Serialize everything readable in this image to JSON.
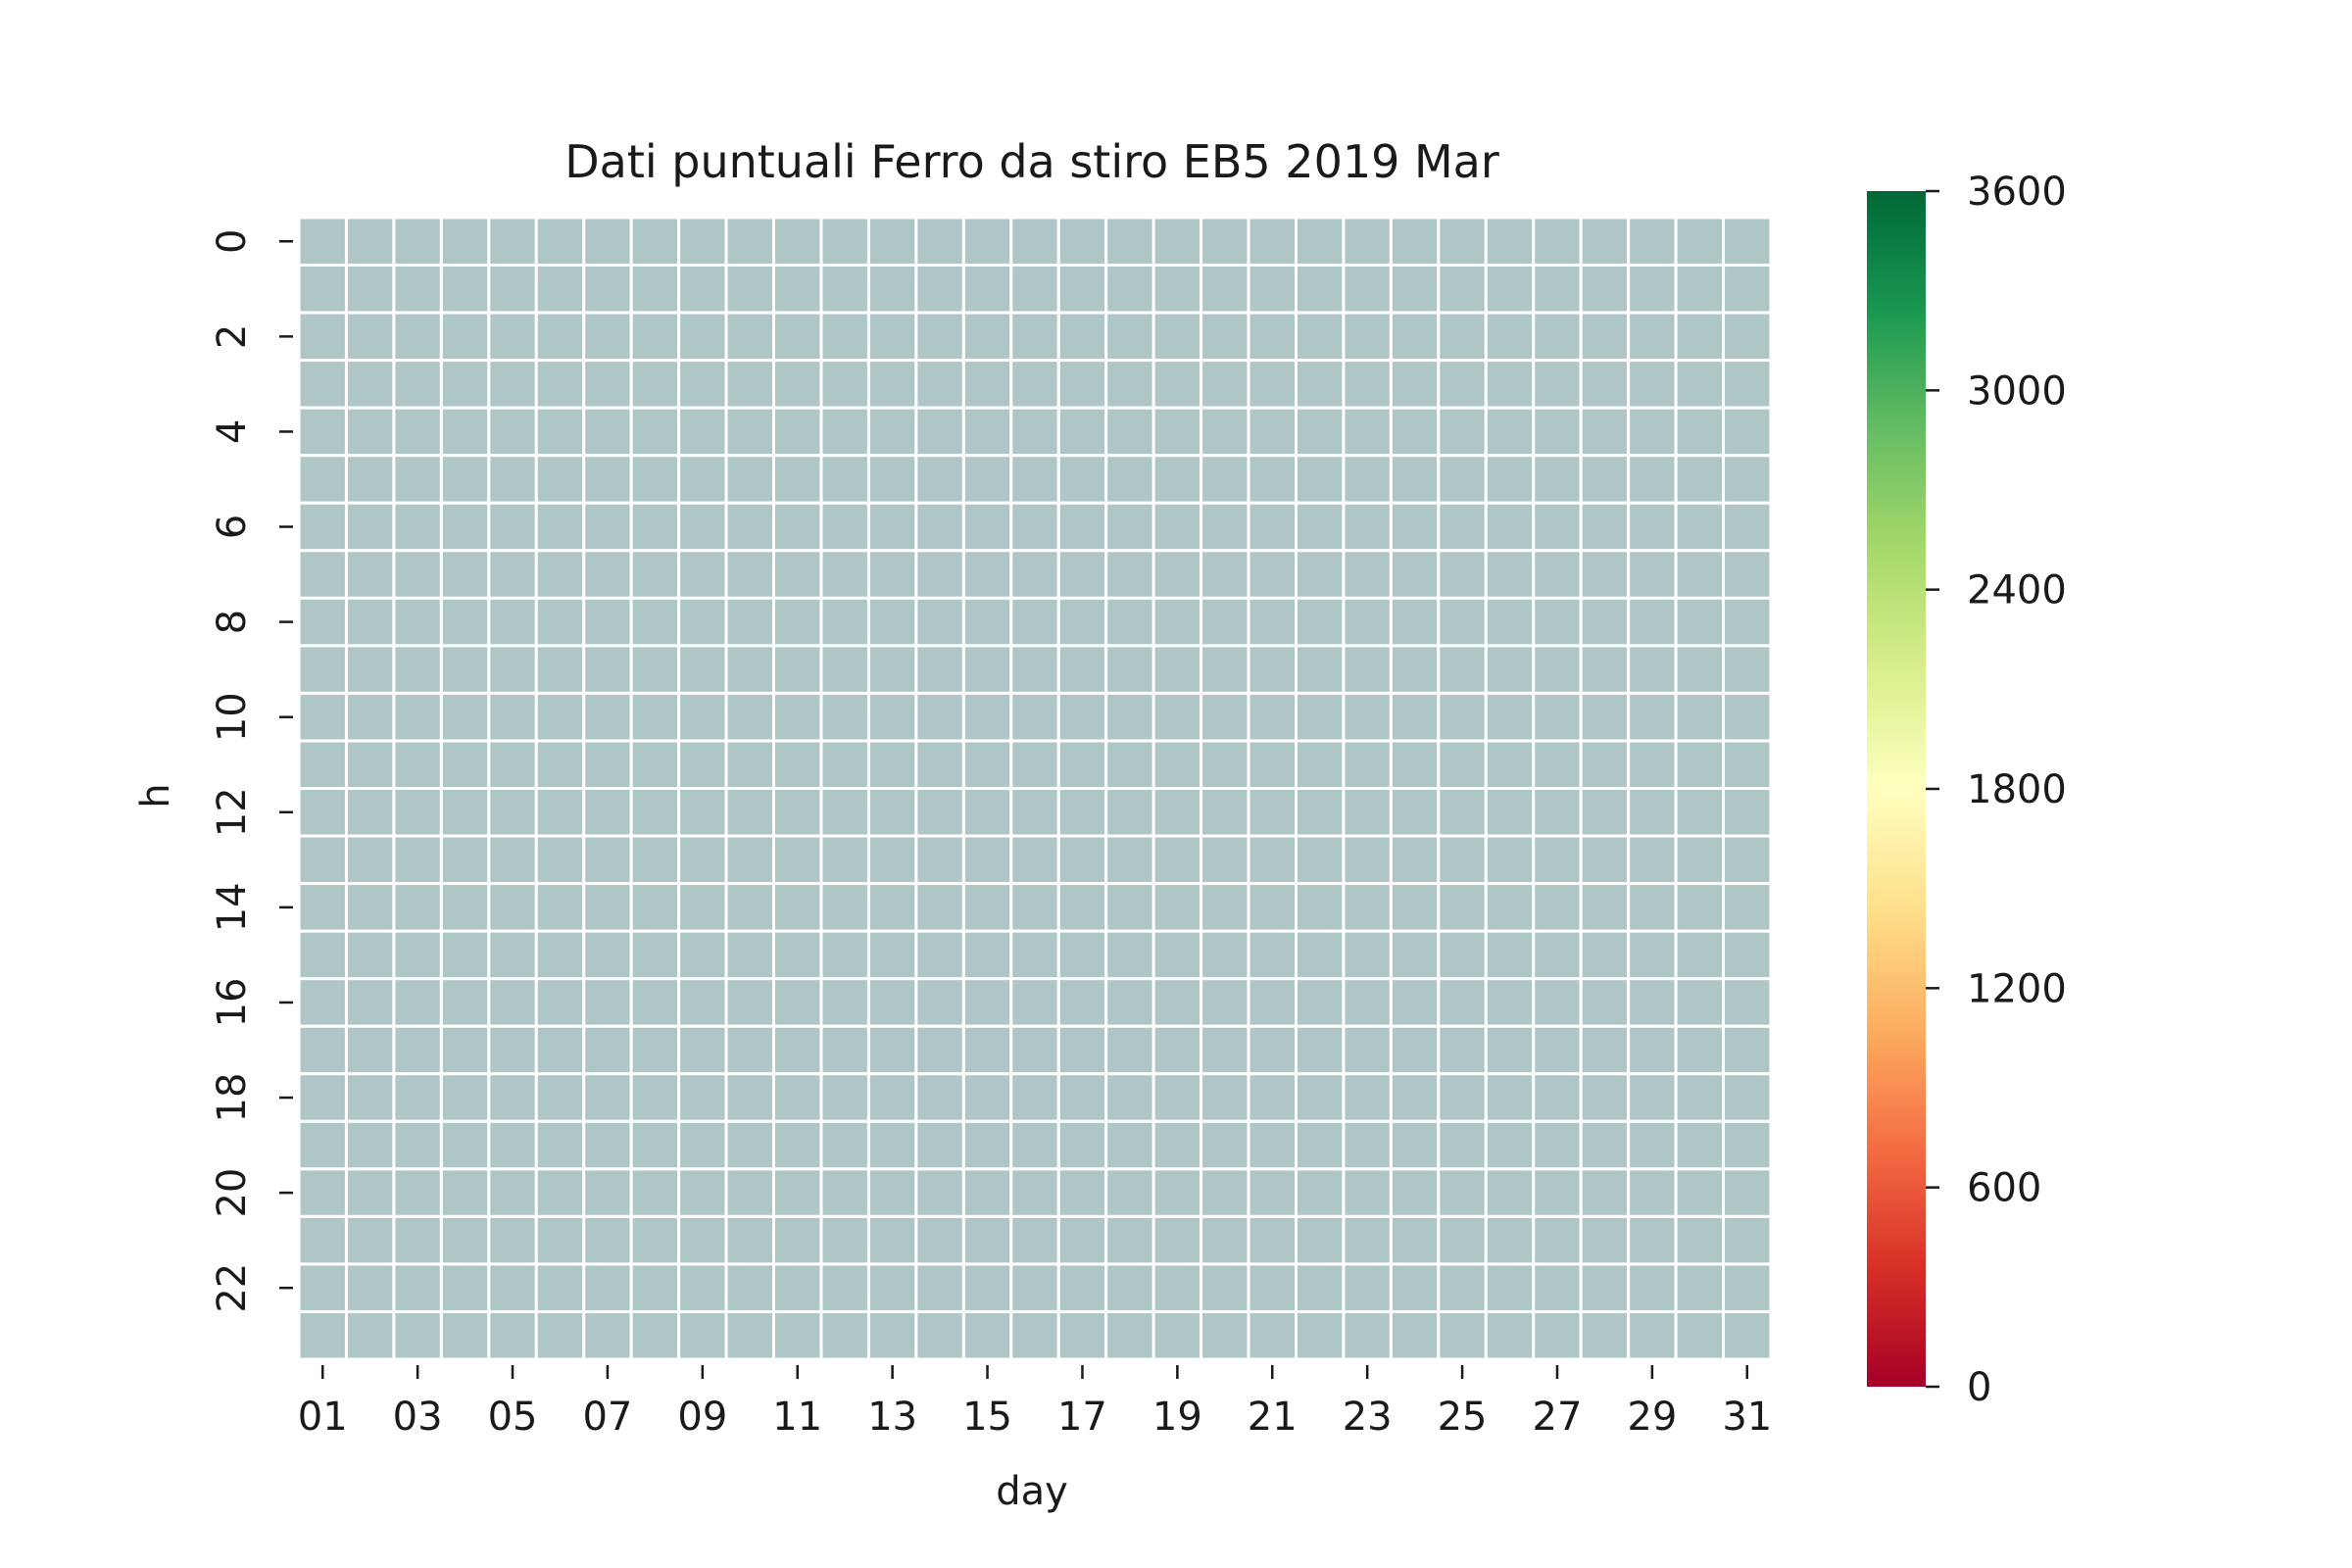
{
  "chart_data": {
    "type": "heatmap",
    "title": "Dati puntuali Ferro da stiro EB5 2019 Mar",
    "xlabel": "day",
    "ylabel": "h",
    "x": [
      "01",
      "02",
      "03",
      "04",
      "05",
      "06",
      "07",
      "08",
      "09",
      "10",
      "11",
      "12",
      "13",
      "14",
      "15",
      "16",
      "17",
      "18",
      "19",
      "20",
      "21",
      "22",
      "23",
      "24",
      "25",
      "26",
      "27",
      "28",
      "29",
      "30",
      "31"
    ],
    "y": [
      "0",
      "1",
      "2",
      "3",
      "4",
      "5",
      "6",
      "7",
      "8",
      "9",
      "10",
      "11",
      "12",
      "13",
      "14",
      "15",
      "16",
      "17",
      "18",
      "19",
      "20",
      "21",
      "22",
      "23"
    ],
    "x_tick_labels": [
      "01",
      "03",
      "05",
      "07",
      "09",
      "11",
      "13",
      "15",
      "17",
      "19",
      "21",
      "23",
      "25",
      "27",
      "29",
      "31"
    ],
    "y_tick_labels": [
      "0",
      "2",
      "4",
      "6",
      "8",
      "10",
      "12",
      "14",
      "16",
      "18",
      "20",
      "22"
    ],
    "values": "none",
    "missing_cell_color": "#afc6c6",
    "grid_line_color": "#ffffff",
    "colorbar": {
      "min": 0,
      "max": 3600,
      "ticks": [
        "0",
        "600",
        "1200",
        "1800",
        "2400",
        "3000",
        "3600"
      ],
      "colormap": "RdYlGn",
      "colors": [
        "#a50026",
        "#d73027",
        "#f46d43",
        "#fdae61",
        "#fee08b",
        "#ffffbf",
        "#d9ef8b",
        "#a6d96a",
        "#66bd63",
        "#1a9850",
        "#006837"
      ]
    }
  }
}
